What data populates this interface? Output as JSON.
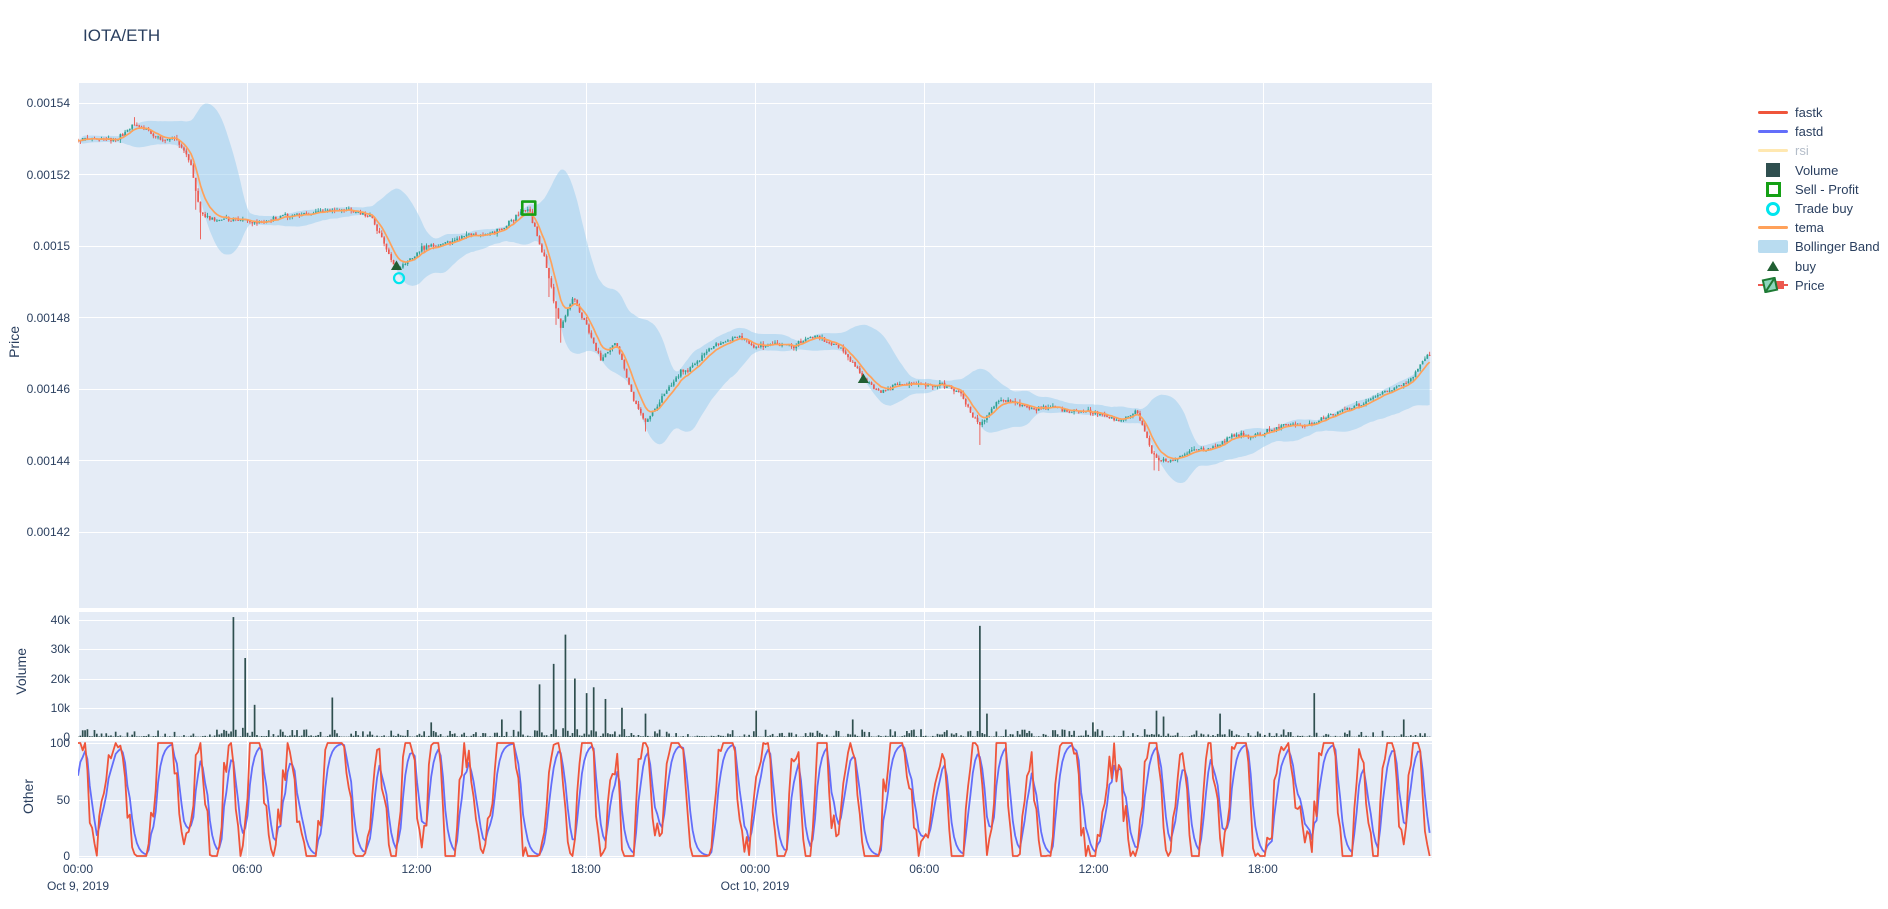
{
  "title": {
    "text": "IOTA/ETH"
  },
  "colors": {
    "background": "#ffffff",
    "plot_bg": "#E5ECF6",
    "grid": "#ffffff",
    "text": "#2a3f5f",
    "legend_dim_text": "#b4bdc9",
    "candle_up": "#2FA192",
    "candle_down": "#EC584F",
    "tema": "#FFA15A",
    "fastk": "#EF553B",
    "fastd": "#636EFA",
    "rsi": "#FECB52",
    "volume_bar": "#2F4F4F",
    "bollinger_fill": "rgba(158,208,238,0.55)",
    "buy_marker": "#215F33",
    "sell_profit_marker": "#15A015",
    "trade_buy_marker": "#00E5EE"
  },
  "legend": {
    "items": [
      {
        "label": "fastk",
        "type": "line",
        "color": "fastk",
        "dim": false
      },
      {
        "label": "fastd",
        "type": "line",
        "color": "fastd",
        "dim": false
      },
      {
        "label": "rsi",
        "type": "line",
        "color": "rsi",
        "dim": true
      },
      {
        "label": "Volume",
        "type": "bar",
        "color": "volume_bar",
        "dim": false
      },
      {
        "label": "Sell - Profit",
        "type": "square-open",
        "color": "sell_profit_marker",
        "dim": false
      },
      {
        "label": "Trade buy",
        "type": "circle-open",
        "color": "trade_buy_marker",
        "dim": false
      },
      {
        "label": "tema",
        "type": "line",
        "color": "tema",
        "dim": false
      },
      {
        "label": "Bollinger Band",
        "type": "band",
        "color": "bollinger_fill",
        "dim": false
      },
      {
        "label": "buy",
        "type": "triangle",
        "color": "buy_marker",
        "dim": false
      },
      {
        "label": "Price",
        "type": "candle",
        "color": "candle_up",
        "dim": false
      }
    ]
  },
  "axes": {
    "price": {
      "title": "Price",
      "ticks": [
        {
          "label": "0.00154",
          "value": 0.00154
        },
        {
          "label": "0.00152",
          "value": 0.00152
        },
        {
          "label": "0.0015",
          "value": 0.0015
        },
        {
          "label": "0.00148",
          "value": 0.00148
        },
        {
          "label": "0.00146",
          "value": 0.00146
        },
        {
          "label": "0.00144",
          "value": 0.00144
        },
        {
          "label": "0.00142",
          "value": 0.00142
        }
      ]
    },
    "volume": {
      "title": "Volume",
      "ticks": [
        {
          "label": "40k",
          "value": 40000
        },
        {
          "label": "30k",
          "value": 30000
        },
        {
          "label": "20k",
          "value": 20000
        },
        {
          "label": "10k",
          "value": 10000
        },
        {
          "label": "0",
          "value": 0
        }
      ]
    },
    "other": {
      "title": "Other",
      "ticks": [
        {
          "label": "100",
          "value": 100
        },
        {
          "label": "50",
          "value": 50
        },
        {
          "label": "0",
          "value": 0
        }
      ]
    },
    "x": {
      "ticks": [
        {
          "hour": 0,
          "time": "00:00",
          "date": "Oct 9, 2019"
        },
        {
          "hour": 6,
          "time": "06:00",
          "date": ""
        },
        {
          "hour": 12,
          "time": "12:00",
          "date": ""
        },
        {
          "hour": 18,
          "time": "18:00",
          "date": ""
        },
        {
          "hour": 24,
          "time": "00:00",
          "date": "Oct 10, 2019"
        },
        {
          "hour": 30,
          "time": "06:00",
          "date": ""
        },
        {
          "hour": 36,
          "time": "12:00",
          "date": ""
        },
        {
          "hour": 42,
          "time": "18:00",
          "date": ""
        }
      ]
    }
  },
  "chart_data": {
    "type": "candlestick",
    "symbol": "IOTA/ETH",
    "panels": [
      "Price",
      "Volume",
      "Other"
    ],
    "candle_interval_minutes": 5,
    "x_range_hours": [
      0,
      48
    ],
    "x_start_label": "Oct 9, 2019 00:00",
    "price_ylim": [
      0.0013985,
      0.0015457
    ],
    "volume_ylim": [
      0,
      42700
    ],
    "other_ylim": [
      0,
      100
    ],
    "traces": [
      {
        "name": "Price",
        "panel": "Price",
        "style": "candlestick",
        "visible": true
      },
      {
        "name": "Bollinger Band",
        "panel": "Price",
        "style": "filled-band",
        "visible": true
      },
      {
        "name": "tema",
        "panel": "Price",
        "style": "line",
        "visible": true
      },
      {
        "name": "buy",
        "panel": "Price",
        "style": "triangle-up-markers",
        "visible": true
      },
      {
        "name": "Sell - Profit",
        "panel": "Price",
        "style": "open-square-marker",
        "visible": true
      },
      {
        "name": "Trade buy",
        "panel": "Price",
        "style": "open-circle-marker",
        "visible": true
      },
      {
        "name": "Volume",
        "panel": "Volume",
        "style": "bars",
        "visible": true
      },
      {
        "name": "fastk",
        "panel": "Other",
        "style": "line",
        "visible": true
      },
      {
        "name": "fastd",
        "panel": "Other",
        "style": "line",
        "visible": true
      },
      {
        "name": "rsi",
        "panel": "Other",
        "style": "line",
        "visible": false
      }
    ],
    "price_anchors": [
      [
        0,
        0.0015291
      ],
      [
        1.14,
        0.0015302
      ],
      [
        2.02,
        0.0015338
      ],
      [
        2.91,
        0.001531
      ],
      [
        3.44,
        0.0015297
      ],
      [
        3.98,
        0.0015227
      ],
      [
        4.33,
        0.0015095
      ],
      [
        4.69,
        0.0015078
      ],
      [
        5.4,
        0.0015067
      ],
      [
        6.11,
        0.0015078
      ],
      [
        6.82,
        0.0015073
      ],
      [
        7.53,
        0.0015087
      ],
      [
        8.24,
        0.0015095
      ],
      [
        8.95,
        0.0015087
      ],
      [
        9.66,
        0.0015104
      ],
      [
        10.37,
        0.0015078
      ],
      [
        11.29,
        0.0014941
      ],
      [
        12.14,
        0.0014989
      ],
      [
        13.21,
        0.0015017
      ],
      [
        14.27,
        0.0015025
      ],
      [
        15.16,
        0.0015059
      ],
      [
        15.98,
        0.0015106
      ],
      [
        16.58,
        0.0014961
      ],
      [
        17.11,
        0.0014765
      ],
      [
        17.54,
        0.0014849
      ],
      [
        18.11,
        0.0014765
      ],
      [
        18.53,
        0.0014681
      ],
      [
        19.07,
        0.0014723
      ],
      [
        19.67,
        0.0014583
      ],
      [
        20.13,
        0.0014513
      ],
      [
        20.66,
        0.0014569
      ],
      [
        21.37,
        0.0014653
      ],
      [
        22.08,
        0.0014681
      ],
      [
        22.72,
        0.0014723
      ],
      [
        23.43,
        0.0014751
      ],
      [
        24.04,
        0.0014709
      ],
      [
        24.75,
        0.0014737
      ],
      [
        25.46,
        0.0014723
      ],
      [
        26.17,
        0.0014751
      ],
      [
        26.88,
        0.0014723
      ],
      [
        27.84,
        0.0014625
      ],
      [
        28.48,
        0.0014597
      ],
      [
        29.19,
        0.0014611
      ],
      [
        29.9,
        0.0014625
      ],
      [
        30.61,
        0.0014611
      ],
      [
        31.32,
        0.0014583
      ],
      [
        31.95,
        0.0014499
      ],
      [
        32.56,
        0.0014555
      ],
      [
        33.27,
        0.0014569
      ],
      [
        33.98,
        0.0014541
      ],
      [
        34.69,
        0.0014555
      ],
      [
        35.4,
        0.0014541
      ],
      [
        36.11,
        0.0014527
      ],
      [
        36.82,
        0.0014513
      ],
      [
        37.53,
        0.0014527
      ],
      [
        38.13,
        0.0014415
      ],
      [
        38.77,
        0.0014401
      ],
      [
        39.55,
        0.0014429
      ],
      [
        40.26,
        0.0014443
      ],
      [
        40.97,
        0.0014457
      ],
      [
        41.68,
        0.0014471
      ],
      [
        42.39,
        0.0014485
      ],
      [
        43.1,
        0.0014499
      ],
      [
        43.81,
        0.0014513
      ],
      [
        44.52,
        0.0014527
      ],
      [
        45.23,
        0.0014555
      ],
      [
        45.94,
        0.0014569
      ],
      [
        46.65,
        0.0014597
      ],
      [
        47.36,
        0.0014639
      ],
      [
        47.82,
        0.0014695
      ],
      [
        48.0,
        0.0014681
      ]
    ],
    "wick_events": [
      [
        2.0,
        2e-06,
        "high"
      ],
      [
        4.15,
        4.5e-06,
        "low"
      ],
      [
        4.33,
        7e-06,
        "low"
      ],
      [
        16.7,
        5e-06,
        "low"
      ],
      [
        16.95,
        4e-06,
        "low"
      ],
      [
        17.15,
        4e-06,
        "low"
      ],
      [
        20.1,
        2.5e-06,
        "low"
      ],
      [
        31.95,
        5.6e-06,
        "low"
      ],
      [
        38.15,
        4.2e-06,
        "low"
      ],
      [
        38.35,
        3e-06,
        "low"
      ]
    ],
    "volume_spikes": [
      [
        5.5,
        41000
      ],
      [
        5.93,
        27000
      ],
      [
        6.25,
        11000
      ],
      [
        9.05,
        13500
      ],
      [
        12.5,
        5000
      ],
      [
        15.0,
        6000
      ],
      [
        15.7,
        9000
      ],
      [
        16.4,
        18000
      ],
      [
        16.9,
        25000
      ],
      [
        17.3,
        35000
      ],
      [
        17.6,
        20000
      ],
      [
        18.0,
        15000
      ],
      [
        18.25,
        17000
      ],
      [
        18.7,
        13000
      ],
      [
        19.3,
        10000
      ],
      [
        20.15,
        8000
      ],
      [
        24.0,
        9000
      ],
      [
        27.5,
        6000
      ],
      [
        32.0,
        38000
      ],
      [
        32.25,
        8000
      ],
      [
        36.0,
        5000
      ],
      [
        38.2,
        9000
      ],
      [
        38.5,
        7000
      ],
      [
        40.5,
        8000
      ],
      [
        43.8,
        15000
      ],
      [
        47.0,
        6000
      ]
    ],
    "markers": {
      "buy": [
        [
          11.29,
          0.0014944
        ],
        [
          27.84,
          0.0014628
        ]
      ],
      "trade_buy": [
        [
          11.38,
          0.001491
        ]
      ],
      "sell_profit": [
        [
          15.98,
          0.0015106
        ]
      ]
    },
    "oscillator": {
      "names": [
        "fastk",
        "fastd"
      ],
      "clip": [
        0,
        100
      ],
      "approx_cycle_candles": 15
    }
  }
}
